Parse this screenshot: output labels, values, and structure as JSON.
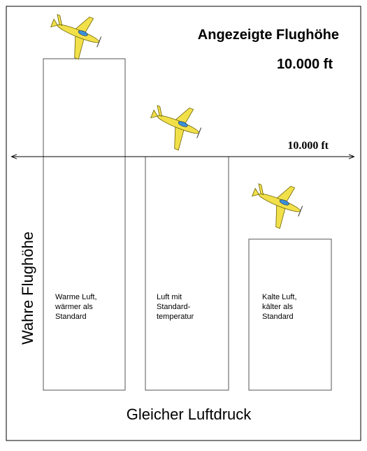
{
  "header": {
    "title": "Angezeigte Flughöhe",
    "value": "10.000 ft"
  },
  "reference_line": {
    "label": "10.000 ft"
  },
  "y_axis_label": "Wahre Flughöhe",
  "x_axis_label": "Gleicher Luftdruck",
  "columns": [
    {
      "lines": [
        "Warme Luft,",
        "wärmer als",
        "Standard"
      ]
    },
    {
      "lines": [
        "Luft mit",
        "Standard-",
        "temperatur"
      ]
    },
    {
      "lines": [
        "Kalte Luft,",
        "kälter als",
        "Standard"
      ]
    }
  ]
}
